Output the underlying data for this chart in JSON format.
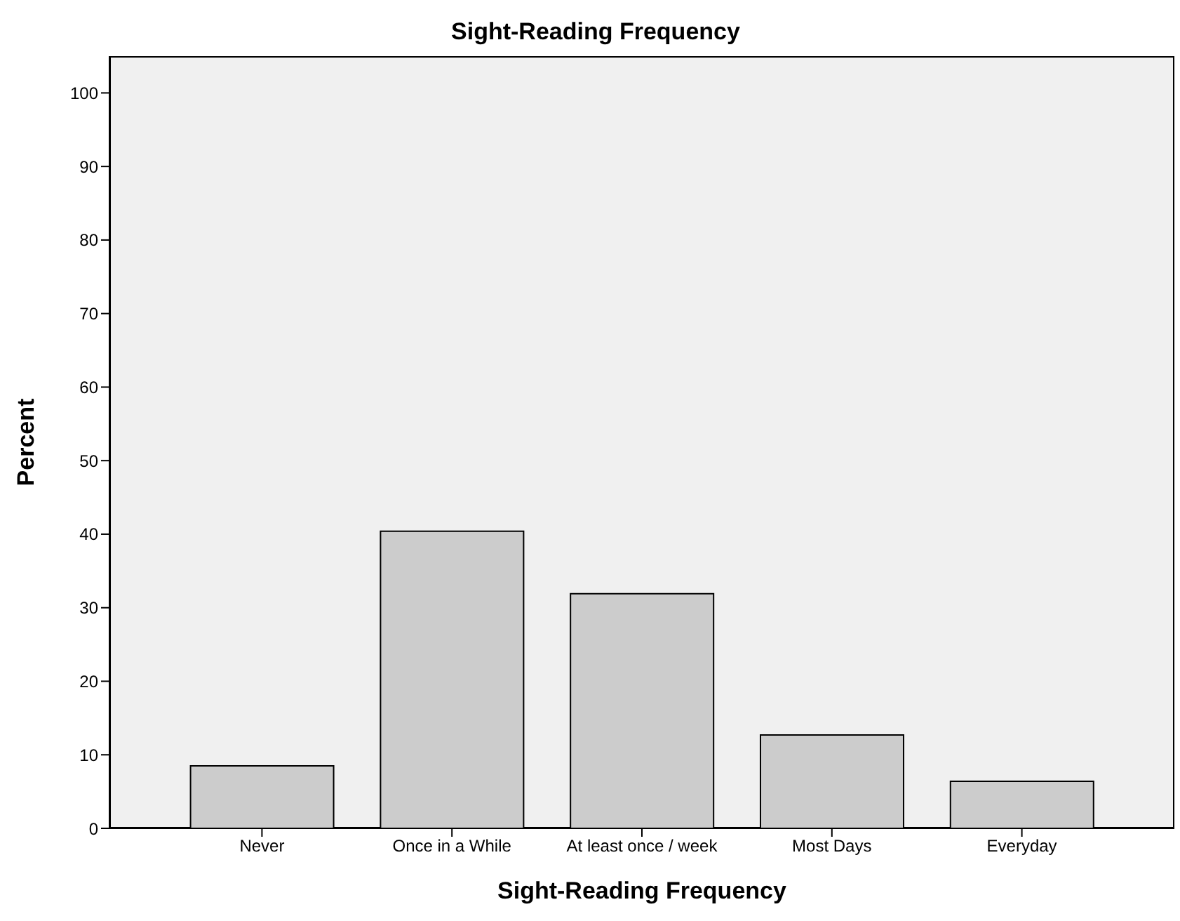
{
  "chart_data": {
    "type": "bar",
    "title": "Sight-Reading Frequency",
    "xlabel": "Sight-Reading Frequency",
    "ylabel": "Percent",
    "categories": [
      "Never",
      "Once in a While",
      "At least once / week",
      "Most Days",
      "Everyday"
    ],
    "values": [
      8.5,
      40.4,
      31.9,
      12.7,
      6.4
    ],
    "color": "#cccccc",
    "ylim": [
      0,
      105
    ],
    "yticks": [
      0,
      10,
      20,
      30,
      40,
      50,
      60,
      70,
      80,
      90,
      100
    ],
    "grid": false,
    "legend": false
  }
}
